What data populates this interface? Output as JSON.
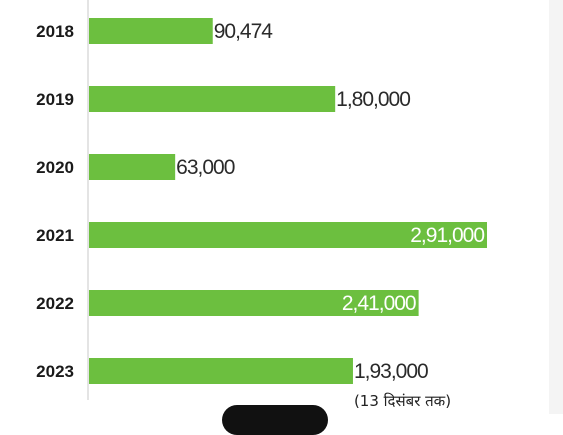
{
  "chart_data": {
    "type": "bar",
    "orientation": "horizontal",
    "categories": [
      "2018",
      "2019",
      "2020",
      "2021",
      "2022",
      "2023"
    ],
    "values": [
      90474,
      180000,
      63000,
      291000,
      241000,
      193000
    ],
    "value_labels": [
      "90,474",
      "1,80,000",
      "63,000",
      "2,91,000",
      "2,41,000",
      "1,93,000"
    ],
    "label_inside": [
      false,
      false,
      false,
      true,
      true,
      false
    ],
    "annotation": "(13 दिसंबर तक)",
    "annotation_category": "2023",
    "xlim": [
      0,
      291000
    ],
    "bar_color": "#6cbf3f",
    "axis_color": "#c8c8c8"
  }
}
